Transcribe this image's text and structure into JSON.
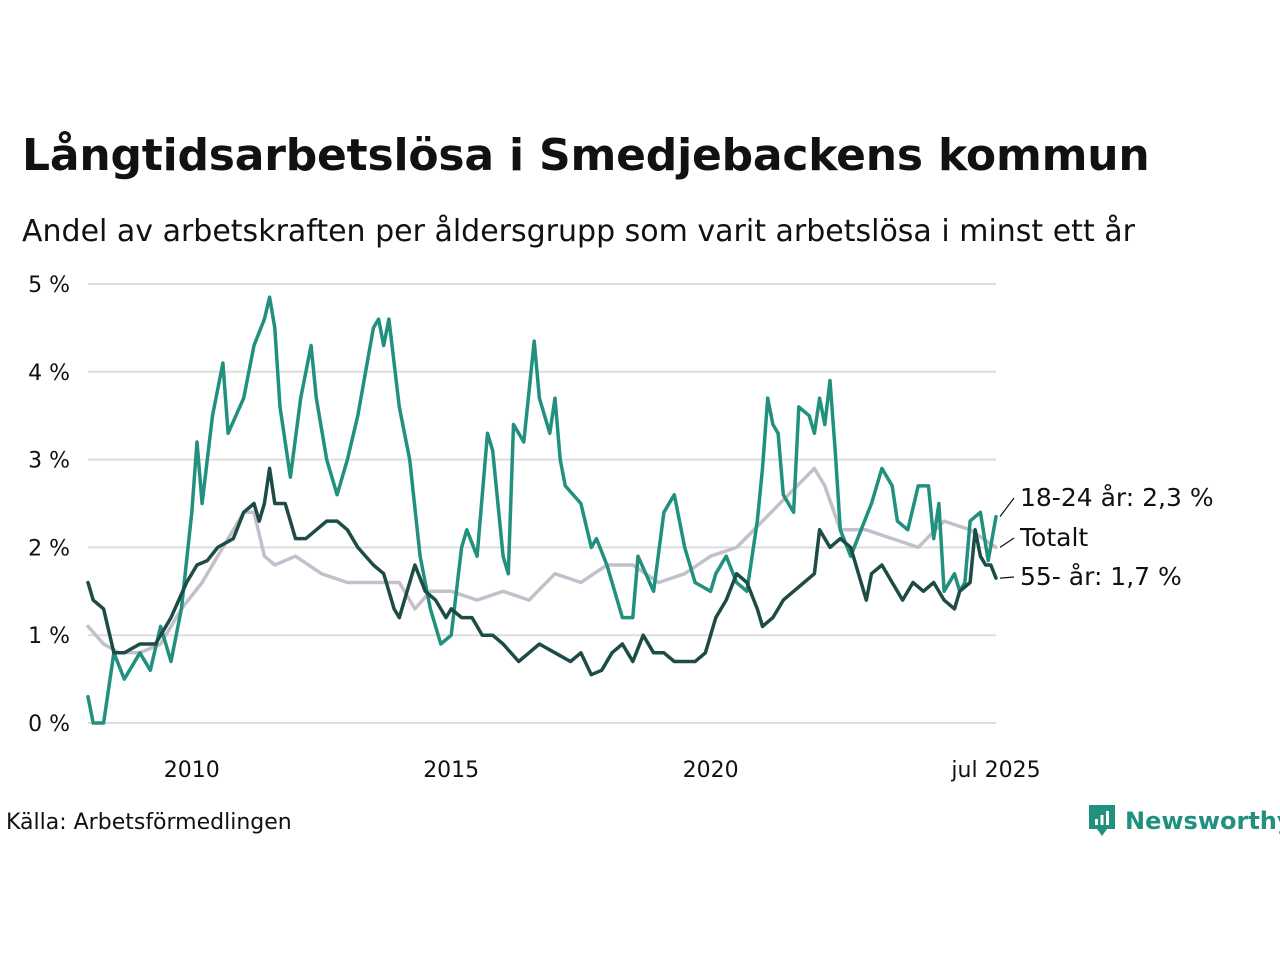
{
  "title": "Långtidsarbetslösa i Smedjebackens kommun",
  "subtitle": "Andel av arbetskraften per åldersgrupp som varit arbetslösa i minst ett år",
  "source": "Källa: Arbetsförmedlingen",
  "brand": {
    "name": "Newsworthy",
    "color": "#21907f"
  },
  "chart_data": {
    "type": "line",
    "x_start": "2008-01",
    "x_end": "2025-07",
    "ylim": [
      0,
      5
    ],
    "y_ticks": [
      0,
      1,
      2,
      3,
      4,
      5
    ],
    "y_tick_labels": [
      "0 %",
      "1 %",
      "2 %",
      "3 %",
      "4 %",
      "5 %"
    ],
    "x_ticks": [
      2010,
      2015,
      2020,
      2025.5
    ],
    "x_tick_labels": [
      "2010",
      "2015",
      "2020",
      "jul 2025"
    ],
    "grid": "horizontal",
    "series": [
      {
        "name": "Totalt",
        "label": "Totalt",
        "color": "#c3c0cc",
        "points": [
          [
            2008.0,
            1.1
          ],
          [
            2008.3,
            0.9
          ],
          [
            2008.6,
            0.8
          ],
          [
            2009.0,
            0.8
          ],
          [
            2009.4,
            0.9
          ],
          [
            2009.8,
            1.3
          ],
          [
            2010.2,
            1.6
          ],
          [
            2010.6,
            2.0
          ],
          [
            2011.0,
            2.4
          ],
          [
            2011.2,
            2.4
          ],
          [
            2011.4,
            1.9
          ],
          [
            2011.6,
            1.8
          ],
          [
            2012.0,
            1.9
          ],
          [
            2012.5,
            1.7
          ],
          [
            2013.0,
            1.6
          ],
          [
            2013.5,
            1.6
          ],
          [
            2014.0,
            1.6
          ],
          [
            2014.3,
            1.3
          ],
          [
            2014.6,
            1.5
          ],
          [
            2015.0,
            1.5
          ],
          [
            2015.5,
            1.4
          ],
          [
            2016.0,
            1.5
          ],
          [
            2016.5,
            1.4
          ],
          [
            2017.0,
            1.7
          ],
          [
            2017.5,
            1.6
          ],
          [
            2018.0,
            1.8
          ],
          [
            2018.5,
            1.8
          ],
          [
            2019.0,
            1.6
          ],
          [
            2019.5,
            1.7
          ],
          [
            2020.0,
            1.9
          ],
          [
            2020.5,
            2.0
          ],
          [
            2021.0,
            2.3
          ],
          [
            2021.5,
            2.6
          ],
          [
            2022.0,
            2.9
          ],
          [
            2022.2,
            2.7
          ],
          [
            2022.5,
            2.2
          ],
          [
            2023.0,
            2.2
          ],
          [
            2023.5,
            2.1
          ],
          [
            2024.0,
            2.0
          ],
          [
            2024.5,
            2.3
          ],
          [
            2025.0,
            2.2
          ],
          [
            2025.5,
            2.0
          ]
        ]
      },
      {
        "name": "18-24 år",
        "label": "18-24 år: 2,3 %",
        "color": "#21907f",
        "points": [
          [
            2008.0,
            0.3
          ],
          [
            2008.1,
            0.0
          ],
          [
            2008.3,
            0.0
          ],
          [
            2008.5,
            0.8
          ],
          [
            2008.7,
            0.5
          ],
          [
            2009.0,
            0.8
          ],
          [
            2009.2,
            0.6
          ],
          [
            2009.4,
            1.1
          ],
          [
            2009.6,
            0.7
          ],
          [
            2009.8,
            1.3
          ],
          [
            2010.0,
            2.4
          ],
          [
            2010.1,
            3.2
          ],
          [
            2010.2,
            2.5
          ],
          [
            2010.4,
            3.5
          ],
          [
            2010.6,
            4.1
          ],
          [
            2010.7,
            3.3
          ],
          [
            2011.0,
            3.7
          ],
          [
            2011.2,
            4.3
          ],
          [
            2011.4,
            4.6
          ],
          [
            2011.5,
            4.85
          ],
          [
            2011.6,
            4.5
          ],
          [
            2011.7,
            3.6
          ],
          [
            2011.9,
            2.8
          ],
          [
            2012.1,
            3.7
          ],
          [
            2012.3,
            4.3
          ],
          [
            2012.4,
            3.7
          ],
          [
            2012.6,
            3.0
          ],
          [
            2012.8,
            2.6
          ],
          [
            2013.0,
            3.0
          ],
          [
            2013.2,
            3.5
          ],
          [
            2013.5,
            4.5
          ],
          [
            2013.6,
            4.6
          ],
          [
            2013.7,
            4.3
          ],
          [
            2013.8,
            4.6
          ],
          [
            2014.0,
            3.6
          ],
          [
            2014.2,
            3.0
          ],
          [
            2014.4,
            1.9
          ],
          [
            2014.6,
            1.3
          ],
          [
            2014.8,
            0.9
          ],
          [
            2015.0,
            1.0
          ],
          [
            2015.2,
            2.0
          ],
          [
            2015.3,
            2.2
          ],
          [
            2015.5,
            1.9
          ],
          [
            2015.7,
            3.3
          ],
          [
            2015.8,
            3.1
          ],
          [
            2016.0,
            1.9
          ],
          [
            2016.1,
            1.7
          ],
          [
            2016.2,
            3.4
          ],
          [
            2016.4,
            3.2
          ],
          [
            2016.6,
            4.35
          ],
          [
            2016.7,
            3.7
          ],
          [
            2016.9,
            3.3
          ],
          [
            2017.0,
            3.7
          ],
          [
            2017.1,
            3.0
          ],
          [
            2017.2,
            2.7
          ],
          [
            2017.5,
            2.5
          ],
          [
            2017.7,
            2.0
          ],
          [
            2017.8,
            2.1
          ],
          [
            2018.0,
            1.8
          ],
          [
            2018.3,
            1.2
          ],
          [
            2018.5,
            1.2
          ],
          [
            2018.6,
            1.9
          ],
          [
            2018.9,
            1.5
          ],
          [
            2019.1,
            2.4
          ],
          [
            2019.3,
            2.6
          ],
          [
            2019.5,
            2.0
          ],
          [
            2019.7,
            1.6
          ],
          [
            2020.0,
            1.5
          ],
          [
            2020.1,
            1.7
          ],
          [
            2020.3,
            1.9
          ],
          [
            2020.5,
            1.6
          ],
          [
            2020.7,
            1.5
          ],
          [
            2020.9,
            2.3
          ],
          [
            2021.0,
            2.9
          ],
          [
            2021.1,
            3.7
          ],
          [
            2021.2,
            3.4
          ],
          [
            2021.3,
            3.3
          ],
          [
            2021.4,
            2.6
          ],
          [
            2021.6,
            2.4
          ],
          [
            2021.7,
            3.6
          ],
          [
            2021.9,
            3.5
          ],
          [
            2022.0,
            3.3
          ],
          [
            2022.1,
            3.7
          ],
          [
            2022.2,
            3.4
          ],
          [
            2022.3,
            3.9
          ],
          [
            2022.4,
            3.1
          ],
          [
            2022.5,
            2.2
          ],
          [
            2022.7,
            1.9
          ],
          [
            2022.9,
            2.2
          ],
          [
            2023.1,
            2.5
          ],
          [
            2023.3,
            2.9
          ],
          [
            2023.5,
            2.7
          ],
          [
            2023.6,
            2.3
          ],
          [
            2023.8,
            2.2
          ],
          [
            2024.0,
            2.7
          ],
          [
            2024.2,
            2.7
          ],
          [
            2024.3,
            2.1
          ],
          [
            2024.4,
            2.5
          ],
          [
            2024.5,
            1.5
          ],
          [
            2024.7,
            1.7
          ],
          [
            2024.8,
            1.5
          ],
          [
            2024.9,
            1.6
          ],
          [
            2025.0,
            2.3
          ],
          [
            2025.2,
            2.4
          ],
          [
            2025.35,
            1.85
          ],
          [
            2025.5,
            2.35
          ]
        ]
      },
      {
        "name": "55- år",
        "label": "55- år: 1,7 %",
        "color": "#1c4c45",
        "points": [
          [
            2008.0,
            1.6
          ],
          [
            2008.1,
            1.4
          ],
          [
            2008.3,
            1.3
          ],
          [
            2008.5,
            0.8
          ],
          [
            2008.7,
            0.8
          ],
          [
            2009.0,
            0.9
          ],
          [
            2009.3,
            0.9
          ],
          [
            2009.6,
            1.2
          ],
          [
            2009.9,
            1.6
          ],
          [
            2010.1,
            1.8
          ],
          [
            2010.3,
            1.85
          ],
          [
            2010.5,
            2.0
          ],
          [
            2010.8,
            2.1
          ],
          [
            2011.0,
            2.4
          ],
          [
            2011.2,
            2.5
          ],
          [
            2011.3,
            2.3
          ],
          [
            2011.4,
            2.5
          ],
          [
            2011.5,
            2.9
          ],
          [
            2011.6,
            2.5
          ],
          [
            2011.8,
            2.5
          ],
          [
            2012.0,
            2.1
          ],
          [
            2012.2,
            2.1
          ],
          [
            2012.4,
            2.2
          ],
          [
            2012.6,
            2.3
          ],
          [
            2012.8,
            2.3
          ],
          [
            2013.0,
            2.2
          ],
          [
            2013.2,
            2.0
          ],
          [
            2013.5,
            1.8
          ],
          [
            2013.7,
            1.7
          ],
          [
            2013.9,
            1.3
          ],
          [
            2014.0,
            1.2
          ],
          [
            2014.2,
            1.6
          ],
          [
            2014.3,
            1.8
          ],
          [
            2014.5,
            1.5
          ],
          [
            2014.7,
            1.4
          ],
          [
            2014.9,
            1.2
          ],
          [
            2015.0,
            1.3
          ],
          [
            2015.2,
            1.2
          ],
          [
            2015.4,
            1.2
          ],
          [
            2015.6,
            1.0
          ],
          [
            2015.8,
            1.0
          ],
          [
            2016.0,
            0.9
          ],
          [
            2016.3,
            0.7
          ],
          [
            2016.5,
            0.8
          ],
          [
            2016.7,
            0.9
          ],
          [
            2017.0,
            0.8
          ],
          [
            2017.3,
            0.7
          ],
          [
            2017.5,
            0.8
          ],
          [
            2017.7,
            0.55
          ],
          [
            2017.9,
            0.6
          ],
          [
            2018.1,
            0.8
          ],
          [
            2018.3,
            0.9
          ],
          [
            2018.5,
            0.7
          ],
          [
            2018.7,
            1.0
          ],
          [
            2018.9,
            0.8
          ],
          [
            2019.1,
            0.8
          ],
          [
            2019.3,
            0.7
          ],
          [
            2019.5,
            0.7
          ],
          [
            2019.7,
            0.7
          ],
          [
            2019.9,
            0.8
          ],
          [
            2020.1,
            1.2
          ],
          [
            2020.3,
            1.4
          ],
          [
            2020.5,
            1.7
          ],
          [
            2020.7,
            1.6
          ],
          [
            2020.9,
            1.3
          ],
          [
            2021.0,
            1.1
          ],
          [
            2021.2,
            1.2
          ],
          [
            2021.4,
            1.4
          ],
          [
            2021.6,
            1.5
          ],
          [
            2021.8,
            1.6
          ],
          [
            2022.0,
            1.7
          ],
          [
            2022.1,
            2.2
          ],
          [
            2022.3,
            2.0
          ],
          [
            2022.5,
            2.1
          ],
          [
            2022.7,
            2.0
          ],
          [
            2022.9,
            1.6
          ],
          [
            2023.0,
            1.4
          ],
          [
            2023.1,
            1.7
          ],
          [
            2023.3,
            1.8
          ],
          [
            2023.5,
            1.6
          ],
          [
            2023.7,
            1.4
          ],
          [
            2023.9,
            1.6
          ],
          [
            2024.1,
            1.5
          ],
          [
            2024.3,
            1.6
          ],
          [
            2024.5,
            1.4
          ],
          [
            2024.7,
            1.3
          ],
          [
            2024.8,
            1.5
          ],
          [
            2025.0,
            1.6
          ],
          [
            2025.1,
            2.2
          ],
          [
            2025.2,
            1.9
          ],
          [
            2025.3,
            1.8
          ],
          [
            2025.4,
            1.8
          ],
          [
            2025.5,
            1.65
          ]
        ]
      }
    ]
  }
}
